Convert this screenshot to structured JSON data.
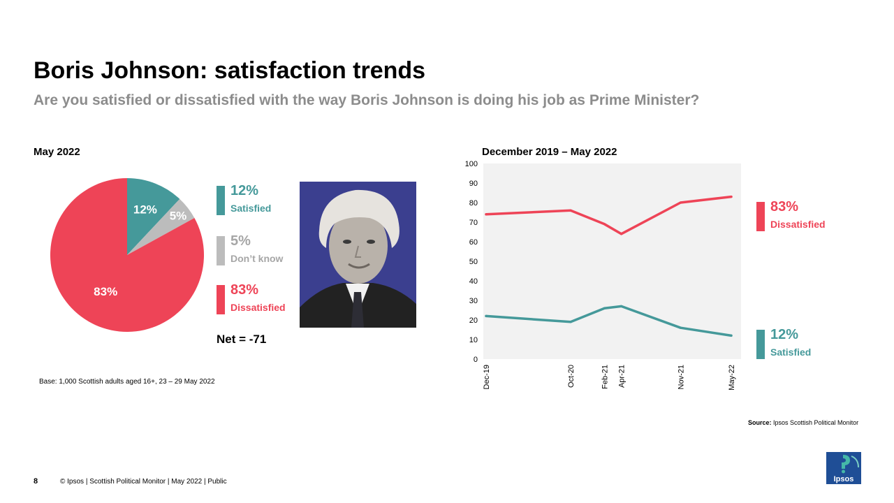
{
  "title": "Boris Johnson: satisfaction trends",
  "subtitle": "Are you satisfied or dissatisfied with the way Boris Johnson is doing his job as Prime Minister?",
  "colors": {
    "satisfied": "#45999a",
    "dont_know": "#bcbcbc",
    "dissatisfied": "#ee4457",
    "plot_bg": "#f2f2f2",
    "photo_bg": "#3b3f8f",
    "logo_bg": "#1f4e96"
  },
  "pie": {
    "heading": "May 2022",
    "net": "Net = -71",
    "legend": [
      {
        "pct": "12%",
        "label": "Satisfied"
      },
      {
        "pct": "5%",
        "label": "Don’t know"
      },
      {
        "pct": "83%",
        "label": "Dissatisfied"
      }
    ]
  },
  "trend": {
    "heading": "December 2019 – May 2022",
    "end_labels": [
      {
        "pct": "83%",
        "label": "Dissatisfied"
      },
      {
        "pct": "12%",
        "label": "Satisfied"
      }
    ]
  },
  "chart_data": [
    {
      "type": "pie",
      "title": "May 2022",
      "slices": [
        {
          "name": "Satisfied",
          "value": 12,
          "label": "12%"
        },
        {
          "name": "Don’t know",
          "value": 5,
          "label": "5%"
        },
        {
          "name": "Dissatisfied",
          "value": 83,
          "label": "83%"
        }
      ]
    },
    {
      "type": "line",
      "title": "December 2019 – May 2022",
      "x": [
        "Dec-19",
        "Oct-20",
        "Feb-21",
        "Apr-21",
        "Nov-21",
        "May-22"
      ],
      "x_dates": [
        "2019-12",
        "2020-10",
        "2021-02",
        "2021-04",
        "2021-11",
        "2022-05"
      ],
      "ylim": [
        0,
        100
      ],
      "yticks": [
        0,
        10,
        20,
        30,
        40,
        50,
        60,
        70,
        80,
        90,
        100
      ],
      "series": [
        {
          "name": "Dissatisfied",
          "values": [
            74,
            76,
            69,
            64,
            80,
            83
          ]
        },
        {
          "name": "Satisfied",
          "values": [
            22,
            19,
            26,
            27,
            16,
            12
          ]
        }
      ]
    }
  ],
  "base": "Base: 1,000 Scottish adults aged 16+, 23 – 29 May 2022",
  "source": {
    "label": "Source:",
    "text": " Ipsos Scottish Political Monitor"
  },
  "footer": {
    "page": "8",
    "text": "© Ipsos | Scottish Political Monitor | May 2022 | Public"
  },
  "logo": {
    "text": "Ipsos"
  }
}
